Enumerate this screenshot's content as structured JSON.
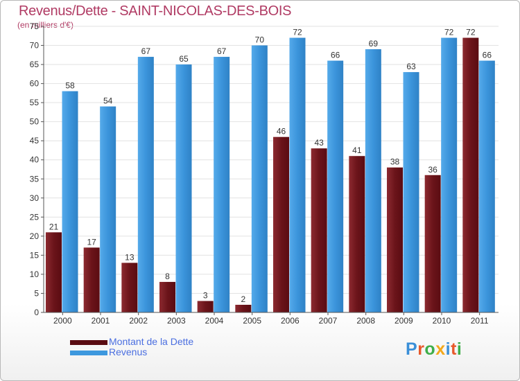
{
  "title": "Revenus/Dette - SAINT-NICOLAS-DES-BOIS",
  "subtitle": "(en milliers d'€)",
  "logo": {
    "text": "Proxiti",
    "colors": [
      "#3a8fd8",
      "#e8592b",
      "#3fae49",
      "#f3a81b",
      "#3a8fd8",
      "#e8592b",
      "#3fae49"
    ]
  },
  "chart_data": {
    "type": "bar",
    "title": "Revenus/Dette - SAINT-NICOLAS-DES-BOIS",
    "ylabel": "(en milliers d'€)",
    "ylim": [
      0,
      75
    ],
    "yticks": [
      0,
      5,
      10,
      15,
      20,
      25,
      30,
      35,
      40,
      45,
      50,
      55,
      60,
      65,
      70,
      75
    ],
    "categories": [
      "2000",
      "2001",
      "2002",
      "2003",
      "2004",
      "2005",
      "2006",
      "2007",
      "2008",
      "2009",
      "2010",
      "2011"
    ],
    "series": [
      {
        "name": "Montant de la Dette",
        "color": "#7a1a20",
        "values": [
          21,
          17,
          13,
          8,
          3,
          2,
          46,
          43,
          41,
          38,
          36,
          72
        ]
      },
      {
        "name": "Revenus",
        "color": "#3d98de",
        "values": [
          58,
          54,
          67,
          65,
          67,
          70,
          72,
          66,
          69,
          63,
          72,
          66
        ]
      }
    ],
    "grid": true,
    "legend": "bottom-left"
  }
}
